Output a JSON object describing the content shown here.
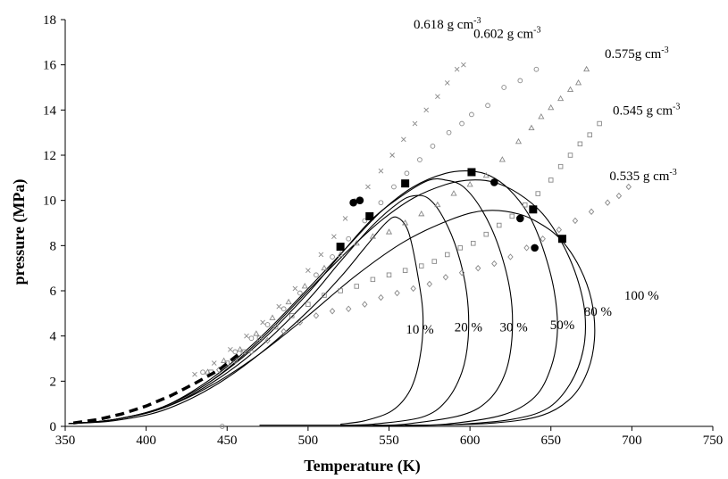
{
  "chart_data": {
    "type": "scatter",
    "xlabel": "Temperature (K)",
    "ylabel": "pressure (MPa)",
    "xlim": [
      350,
      750
    ],
    "ylim": [
      0,
      18
    ],
    "x_ticks": [
      350,
      400,
      450,
      500,
      550,
      600,
      650,
      700,
      750
    ],
    "y_ticks": [
      0,
      2,
      4,
      6,
      8,
      10,
      12,
      14,
      16,
      18
    ],
    "grid": false,
    "legend": "none",
    "density_labels": [
      {
        "text": "0.618 g cm",
        "sup": "-3",
        "x": 586,
        "y": 17.6
      },
      {
        "text": "0.602 g cm",
        "sup": "-3",
        "x": 623,
        "y": 17.2
      },
      {
        "text": "0.575g cm",
        "sup": "-3",
        "x": 703,
        "y": 16.3
      },
      {
        "text": "0.545 g cm",
        "sup": "-3",
        "x": 709,
        "y": 13.8
      },
      {
        "text": "0.535 g cm",
        "sup": "-3",
        "x": 707,
        "y": 10.9
      }
    ],
    "envelope_labels": [
      {
        "text": "10 %",
        "x": 569,
        "y": 4.1
      },
      {
        "text": "20 %",
        "x": 599,
        "y": 4.2
      },
      {
        "text": "30 %",
        "x": 627,
        "y": 4.2
      },
      {
        "text": "50%",
        "x": 657,
        "y": 4.3
      },
      {
        "text": "80 %",
        "x": 679,
        "y": 4.9
      },
      {
        "text": "100 %",
        "x": 706,
        "y": 5.6
      }
    ],
    "series": [
      {
        "marker": "cross",
        "density": "0.618",
        "points": [
          [
            430,
            2.3
          ],
          [
            442,
            2.8
          ],
          [
            452,
            3.4
          ],
          [
            462,
            4.0
          ],
          [
            472,
            4.6
          ],
          [
            482,
            5.3
          ],
          [
            492,
            6.1
          ],
          [
            500,
            6.9
          ],
          [
            508,
            7.6
          ],
          [
            516,
            8.4
          ],
          [
            523,
            9.2
          ],
          [
            530,
            10.0
          ],
          [
            537,
            10.6
          ],
          [
            545,
            11.3
          ],
          [
            552,
            12.0
          ],
          [
            559,
            12.7
          ],
          [
            566,
            13.4
          ],
          [
            573,
            14.0
          ],
          [
            580,
            14.6
          ],
          [
            586,
            15.2
          ],
          [
            592,
            15.8
          ],
          [
            596,
            16.0
          ]
        ]
      },
      {
        "marker": "circle",
        "density": "0.602",
        "points": [
          [
            435,
            2.4
          ],
          [
            447,
            0.0
          ],
          [
            455,
            3.3
          ],
          [
            465,
            3.9
          ],
          [
            475,
            4.5
          ],
          [
            485,
            5.2
          ],
          [
            495,
            5.9
          ],
          [
            505,
            6.7
          ],
          [
            515,
            7.5
          ],
          [
            525,
            8.3
          ],
          [
            535,
            9.1
          ],
          [
            545,
            9.9
          ],
          [
            553,
            10.6
          ],
          [
            561,
            11.2
          ],
          [
            569,
            11.8
          ],
          [
            577,
            12.4
          ],
          [
            587,
            13.0
          ],
          [
            595,
            13.4
          ],
          [
            601,
            13.8
          ],
          [
            611,
            14.2
          ],
          [
            621,
            15.0
          ],
          [
            631,
            15.3
          ],
          [
            641,
            15.8
          ]
        ]
      },
      {
        "marker": "triangle",
        "density": "0.575",
        "points": [
          [
            438,
            2.4
          ],
          [
            448,
            2.9
          ],
          [
            458,
            3.4
          ],
          [
            468,
            4.1
          ],
          [
            478,
            4.8
          ],
          [
            488,
            5.5
          ],
          [
            498,
            6.2
          ],
          [
            510,
            7.0
          ],
          [
            520,
            7.6
          ],
          [
            530,
            8.1
          ],
          [
            540,
            8.4
          ],
          [
            550,
            8.6
          ],
          [
            560,
            9.0
          ],
          [
            570,
            9.4
          ],
          [
            580,
            9.8
          ],
          [
            590,
            10.3
          ],
          [
            600,
            10.7
          ],
          [
            610,
            11.1
          ],
          [
            620,
            11.8
          ],
          [
            630,
            12.6
          ],
          [
            638,
            13.2
          ],
          [
            644,
            13.7
          ],
          [
            650,
            14.1
          ],
          [
            656,
            14.5
          ],
          [
            662,
            14.9
          ],
          [
            667,
            15.2
          ],
          [
            672,
            15.8
          ]
        ]
      },
      {
        "marker": "square",
        "density": "0.545",
        "points": [
          [
            440,
            2.4
          ],
          [
            450,
            2.8
          ],
          [
            460,
            3.3
          ],
          [
            470,
            3.9
          ],
          [
            480,
            4.4
          ],
          [
            490,
            4.9
          ],
          [
            500,
            5.4
          ],
          [
            510,
            5.8
          ],
          [
            520,
            6.0
          ],
          [
            530,
            6.2
          ],
          [
            540,
            6.5
          ],
          [
            550,
            6.7
          ],
          [
            560,
            6.9
          ],
          [
            570,
            7.1
          ],
          [
            578,
            7.3
          ],
          [
            586,
            7.6
          ],
          [
            594,
            7.9
          ],
          [
            602,
            8.1
          ],
          [
            610,
            8.5
          ],
          [
            618,
            8.9
          ],
          [
            626,
            9.3
          ],
          [
            634,
            9.8
          ],
          [
            642,
            10.3
          ],
          [
            650,
            10.9
          ],
          [
            656,
            11.5
          ],
          [
            662,
            12.0
          ],
          [
            668,
            12.5
          ],
          [
            674,
            12.9
          ],
          [
            680,
            13.4
          ]
        ]
      },
      {
        "marker": "diamond",
        "density": "0.535",
        "points": [
          [
            445,
            2.5
          ],
          [
            455,
            2.9
          ],
          [
            465,
            3.3
          ],
          [
            475,
            3.8
          ],
          [
            485,
            4.2
          ],
          [
            495,
            4.6
          ],
          [
            505,
            4.9
          ],
          [
            515,
            5.1
          ],
          [
            525,
            5.2
          ],
          [
            535,
            5.4
          ],
          [
            545,
            5.7
          ],
          [
            555,
            5.9
          ],
          [
            565,
            6.1
          ],
          [
            575,
            6.3
          ],
          [
            585,
            6.6
          ],
          [
            595,
            6.8
          ],
          [
            605,
            7.0
          ],
          [
            615,
            7.2
          ],
          [
            625,
            7.5
          ],
          [
            635,
            7.9
          ],
          [
            645,
            8.3
          ],
          [
            655,
            8.7
          ],
          [
            665,
            9.1
          ],
          [
            675,
            9.5
          ],
          [
            685,
            9.9
          ],
          [
            692,
            10.2
          ],
          [
            698,
            10.6
          ]
        ]
      },
      {
        "marker": "filled-square",
        "points": [
          [
            520,
            7.95
          ],
          [
            538,
            9.3
          ],
          [
            560,
            10.75
          ],
          [
            601,
            11.25
          ],
          [
            639,
            9.6
          ],
          [
            657,
            8.3
          ]
        ]
      },
      {
        "marker": "filled-circle",
        "points": [
          [
            528,
            9.9
          ],
          [
            532,
            10.0
          ],
          [
            615,
            10.8
          ],
          [
            631,
            9.2
          ],
          [
            640,
            7.9
          ]
        ]
      },
      {
        "line": "dashed-bold",
        "points": [
          [
            355,
            0.15
          ],
          [
            370,
            0.3
          ],
          [
            385,
            0.55
          ],
          [
            400,
            0.9
          ],
          [
            415,
            1.35
          ],
          [
            430,
            1.9
          ],
          [
            445,
            2.5
          ],
          [
            458,
            3.25
          ]
        ]
      }
    ],
    "envelopes": [
      {
        "label": "10 %",
        "points": [
          [
            352,
            0.12
          ],
          [
            380,
            0.25
          ],
          [
            410,
            0.7
          ],
          [
            440,
            1.7
          ],
          [
            470,
            3.2
          ],
          [
            500,
            5.1
          ],
          [
            520,
            6.6
          ],
          [
            535,
            7.9
          ],
          [
            548,
            9.0
          ],
          [
            555,
            9.25
          ],
          [
            562,
            8.6
          ],
          [
            568,
            6.6
          ],
          [
            571,
            4.8
          ],
          [
            569,
            3.0
          ],
          [
            563,
            1.6
          ],
          [
            552,
            0.7
          ],
          [
            535,
            0.25
          ],
          [
            520,
            0.1
          ]
        ]
      },
      {
        "label": "20 %",
        "points": [
          [
            352,
            0.12
          ],
          [
            380,
            0.3
          ],
          [
            410,
            0.8
          ],
          [
            440,
            1.9
          ],
          [
            470,
            3.5
          ],
          [
            500,
            5.6
          ],
          [
            520,
            7.3
          ],
          [
            540,
            8.9
          ],
          [
            556,
            9.9
          ],
          [
            565,
            10.2
          ],
          [
            574,
            10.1
          ],
          [
            583,
            9.3
          ],
          [
            592,
            7.8
          ],
          [
            598,
            5.9
          ],
          [
            599,
            4.0
          ],
          [
            595,
            2.4
          ],
          [
            585,
            1.1
          ],
          [
            570,
            0.4
          ],
          [
            540,
            0.1
          ],
          [
            520,
            0.05
          ]
        ]
      },
      {
        "label": "30 %",
        "points": [
          [
            352,
            0.12
          ],
          [
            380,
            0.3
          ],
          [
            410,
            0.85
          ],
          [
            440,
            2.0
          ],
          [
            470,
            3.7
          ],
          [
            500,
            5.9
          ],
          [
            520,
            7.6
          ],
          [
            540,
            9.2
          ],
          [
            560,
            10.3
          ],
          [
            575,
            10.9
          ],
          [
            585,
            10.9
          ],
          [
            596,
            10.6
          ],
          [
            608,
            9.5
          ],
          [
            618,
            7.9
          ],
          [
            625,
            5.9
          ],
          [
            626,
            4.0
          ],
          [
            622,
            2.4
          ],
          [
            612,
            1.2
          ],
          [
            595,
            0.5
          ],
          [
            560,
            0.1
          ],
          [
            540,
            0.05
          ]
        ]
      },
      {
        "label": "50%",
        "points": [
          [
            352,
            0.12
          ],
          [
            380,
            0.3
          ],
          [
            410,
            0.85
          ],
          [
            440,
            2.1
          ],
          [
            470,
            3.9
          ],
          [
            500,
            6.1
          ],
          [
            525,
            8.0
          ],
          [
            545,
            9.5
          ],
          [
            565,
            10.6
          ],
          [
            585,
            11.2
          ],
          [
            600,
            11.3
          ],
          [
            612,
            11.1
          ],
          [
            624,
            10.5
          ],
          [
            636,
            9.4
          ],
          [
            645,
            7.9
          ],
          [
            652,
            6.0
          ],
          [
            654,
            4.2
          ],
          [
            650,
            2.6
          ],
          [
            640,
            1.3
          ],
          [
            620,
            0.5
          ],
          [
            585,
            0.1
          ],
          [
            560,
            0.05
          ]
        ]
      },
      {
        "label": "80 %",
        "points": [
          [
            352,
            0.12
          ],
          [
            380,
            0.3
          ],
          [
            410,
            0.85
          ],
          [
            440,
            2.0
          ],
          [
            470,
            3.8
          ],
          [
            500,
            6.0
          ],
          [
            525,
            7.8
          ],
          [
            545,
            9.1
          ],
          [
            565,
            10.1
          ],
          [
            585,
            10.7
          ],
          [
            600,
            10.9
          ],
          [
            615,
            10.8
          ],
          [
            630,
            10.3
          ],
          [
            645,
            9.4
          ],
          [
            657,
            8.1
          ],
          [
            666,
            6.6
          ],
          [
            671,
            5.0
          ],
          [
            670,
            3.4
          ],
          [
            662,
            1.9
          ],
          [
            648,
            0.8
          ],
          [
            625,
            0.3
          ],
          [
            590,
            0.08
          ],
          [
            560,
            0.05
          ]
        ]
      },
      {
        "label": "100 %",
        "points": [
          [
            352,
            0.12
          ],
          [
            380,
            0.3
          ],
          [
            410,
            0.8
          ],
          [
            440,
            1.8
          ],
          [
            470,
            3.2
          ],
          [
            500,
            4.9
          ],
          [
            530,
            6.7
          ],
          [
            560,
            8.2
          ],
          [
            590,
            9.2
          ],
          [
            610,
            9.55
          ],
          [
            630,
            9.4
          ],
          [
            645,
            8.9
          ],
          [
            657,
            8.2
          ],
          [
            668,
            7.0
          ],
          [
            675,
            5.6
          ],
          [
            677,
            4.0
          ],
          [
            673,
            2.5
          ],
          [
            663,
            1.3
          ],
          [
            645,
            0.5
          ],
          [
            615,
            0.15
          ],
          [
            570,
            0.05
          ],
          [
            520,
            0.05
          ],
          [
            470,
            0.05
          ]
        ]
      }
    ]
  }
}
